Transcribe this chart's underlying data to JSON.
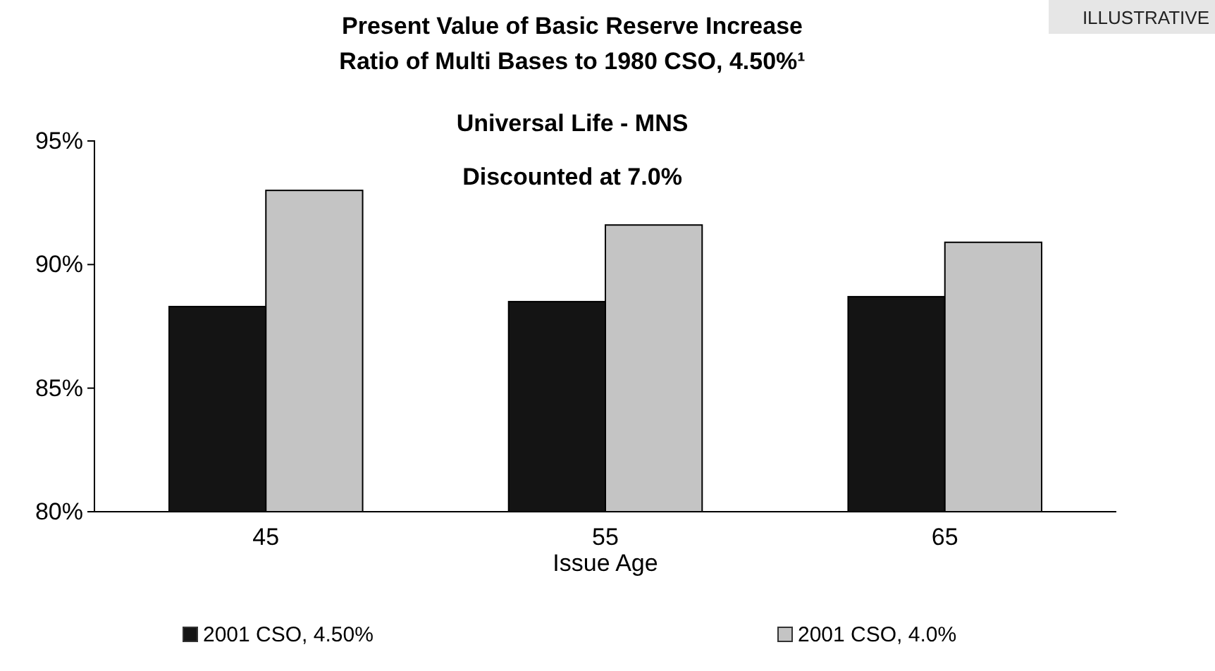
{
  "chart_data": {
    "type": "bar",
    "title": "Present Value of Basic Reserve Increase\nRatio of Multi Bases to 1980 CSO, 4.50%¹",
    "subtitle": "Universal Life - MNS",
    "annotations": [
      "Discounted at 7.0%",
      "ILLUSTRATIVE"
    ],
    "xlabel": "Issue Age",
    "categories": [
      "45",
      "55",
      "65"
    ],
    "series": [
      {
        "name": "2001 CSO, 4.50%",
        "color": "#141414",
        "values": [
          88.3,
          88.5,
          88.7
        ]
      },
      {
        "name": "2001 CSO, 4.0%",
        "color": "#c4c4c4",
        "values": [
          93.0,
          91.6,
          90.9
        ]
      }
    ],
    "ylim": [
      80,
      95
    ],
    "yticks": [
      {
        "value": 80,
        "label": "80%"
      },
      {
        "value": 85,
        "label": "85%"
      },
      {
        "value": 90,
        "label": "90%"
      },
      {
        "value": 95,
        "label": "95%"
      }
    ],
    "legend": "bottom",
    "grid": false
  }
}
